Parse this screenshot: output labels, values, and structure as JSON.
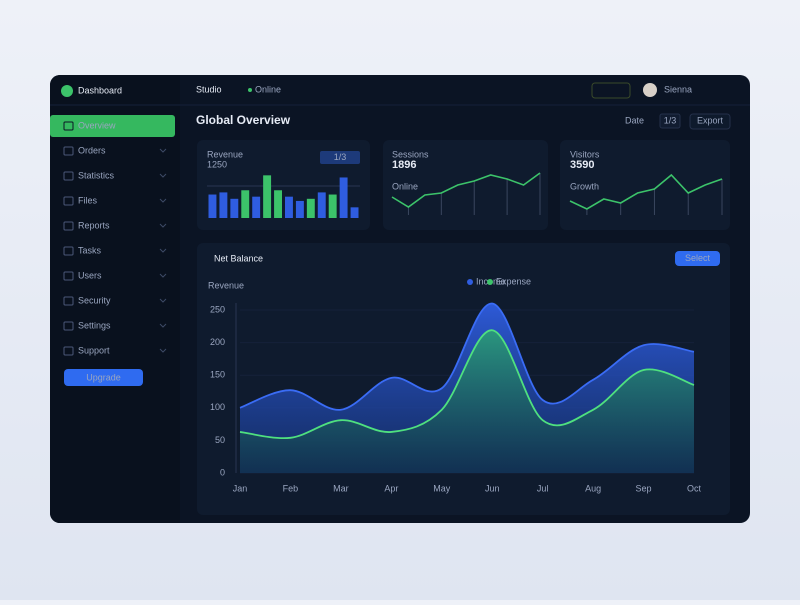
{
  "brand": "Dashboard",
  "header": {
    "tab": "Studio",
    "status": "Online",
    "user": "Sienna"
  },
  "sidebar": {
    "items": [
      "Overview",
      "Orders",
      "Statistics",
      "Files",
      "Reports",
      "Tasks",
      "Users",
      "Security",
      "Settings",
      "Support"
    ],
    "button": "Upgrade"
  },
  "page_title": "Global Overview",
  "controls": {
    "filter": "Date",
    "page": "1/3",
    "action": "Export"
  },
  "chart_data": [
    {
      "type": "bar",
      "title": "Revenue",
      "subtitle": "1250",
      "badge": "1/3",
      "values": [
        22,
        24,
        18,
        26,
        20,
        40,
        26,
        20,
        16,
        18,
        24,
        22,
        38,
        10
      ],
      "colors": [
        "#2f5de0",
        "#2f5de0",
        "#2f5de0",
        "#3cc36a",
        "#2f5de0",
        "#3cc36a",
        "#3cc36a",
        "#2f5de0",
        "#2f5de0",
        "#3cc36a",
        "#2f5de0",
        "#3cc36a",
        "#2f5de0",
        "#2f5de0"
      ],
      "ylim": [
        0,
        45
      ]
    },
    {
      "type": "line",
      "title": "Sessions",
      "subtitle": "1896",
      "note": "Online",
      "values": [
        18,
        8,
        20,
        22,
        30,
        34,
        40,
        36,
        30,
        42
      ],
      "color": "#3cc36a",
      "ylim": [
        0,
        50
      ]
    },
    {
      "type": "line",
      "title": "Visitors",
      "subtitle": "3590",
      "note": "Growth",
      "values": [
        14,
        6,
        16,
        12,
        22,
        26,
        40,
        22,
        30,
        36
      ],
      "color": "#3cc36a",
      "ylim": [
        0,
        50
      ]
    },
    {
      "type": "area",
      "title": "Net Balance",
      "y_label": "Revenue",
      "button": "Select",
      "categories": [
        "Jan",
        "Feb",
        "Mar",
        "Apr",
        "May",
        "Jun",
        "Jul",
        "Aug",
        "Sep",
        "Oct"
      ],
      "series": [
        {
          "name": "Income",
          "color": "#2f5de0",
          "values": [
            100,
            127,
            97,
            146,
            130,
            260,
            112,
            143,
            196,
            186
          ]
        },
        {
          "name": "Expense",
          "color": "#3cc36a",
          "values": [
            63,
            54,
            81,
            63,
            97,
            219,
            81,
            97,
            158,
            135
          ]
        }
      ],
      "ylim": [
        0,
        260
      ],
      "yticks": [
        0,
        50,
        100,
        150,
        200,
        250
      ]
    }
  ]
}
